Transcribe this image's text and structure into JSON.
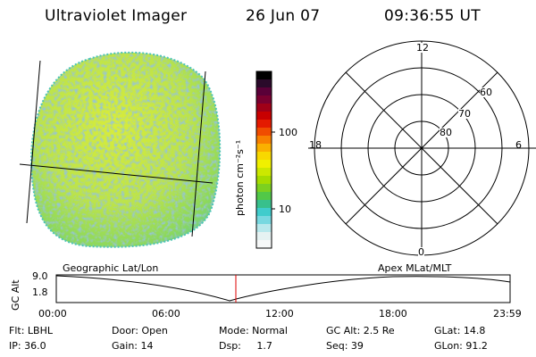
{
  "header": {
    "title": "Ultraviolet Imager",
    "date": "26 Jun 07",
    "time": "09:36:55 UT"
  },
  "colorbar": {
    "unit_label": "photon cm⁻²s⁻¹",
    "tick_labels": [
      "100",
      "10"
    ],
    "colors": [
      "#000000",
      "#2a0a2a",
      "#5a0038",
      "#7a0030",
      "#a00018",
      "#c80000",
      "#e41a00",
      "#f04c00",
      "#f88000",
      "#fab000",
      "#f8d800",
      "#f0f000",
      "#cce800",
      "#a6dc00",
      "#7cd020",
      "#52c848",
      "#38c08c",
      "#40cccc",
      "#78d8e0",
      "#b8e8ec",
      "#e6f2f2",
      "#f6f8f8"
    ]
  },
  "polar_plot": {
    "clock_labels": [
      "12",
      "18",
      "6",
      "0"
    ],
    "lat_labels": [
      "60",
      "70",
      "80"
    ]
  },
  "timeline": {
    "left_title": "Geographic Lat/Lon",
    "right_title": "Apex MLat/MLT",
    "axis_label": "GC Alt",
    "y_labels": [
      "9.0",
      "1.8"
    ],
    "x_labels": [
      "00:00",
      "06:00",
      "12:00",
      "18:00",
      "23:59"
    ],
    "current_marker_color": "#dd0000"
  },
  "info": {
    "row1": [
      "Flt: LBHL",
      "Door: Open",
      "Mode: Normal",
      "GC Alt: 2.5 Re",
      "GLat: 14.8"
    ],
    "row2": [
      "IP: 36.0",
      "Gain: 14",
      "Dsp:     1.7",
      "Seq: 39",
      "GLon: 91.2"
    ]
  }
}
